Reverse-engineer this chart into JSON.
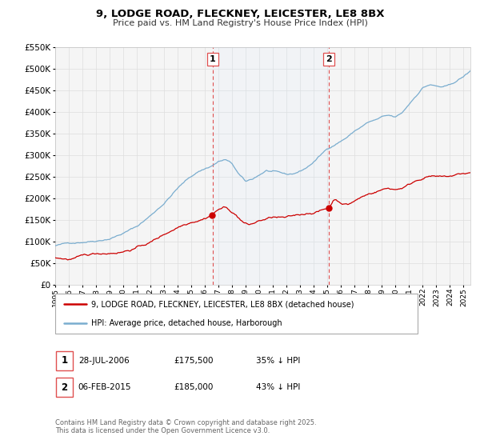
{
  "title": "9, LODGE ROAD, FLECKNEY, LEICESTER, LE8 8BX",
  "subtitle": "Price paid vs. HM Land Registry's House Price Index (HPI)",
  "legend_label_red": "9, LODGE ROAD, FLECKNEY, LEICESTER, LE8 8BX (detached house)",
  "legend_label_blue": "HPI: Average price, detached house, Harborough",
  "annotation1_date": "28-JUL-2006",
  "annotation1_price": "£175,500",
  "annotation1_hpi": "35% ↓ HPI",
  "annotation2_date": "06-FEB-2015",
  "annotation2_price": "£185,000",
  "annotation2_hpi": "43% ↓ HPI",
  "footer": "Contains HM Land Registry data © Crown copyright and database right 2025.\nThis data is licensed under the Open Government Licence v3.0.",
  "xmin": 1995.0,
  "xmax": 2025.5,
  "ymin": 0,
  "ymax": 550000,
  "vline1_year": 2006.57,
  "vline2_year": 2015.09,
  "bg_color": "#f5f5f5",
  "grid_color": "#dddddd",
  "red_color": "#cc0000",
  "blue_color": "#7aadcf",
  "vline_color": "#e05050",
  "span_color": "#ddeeff"
}
